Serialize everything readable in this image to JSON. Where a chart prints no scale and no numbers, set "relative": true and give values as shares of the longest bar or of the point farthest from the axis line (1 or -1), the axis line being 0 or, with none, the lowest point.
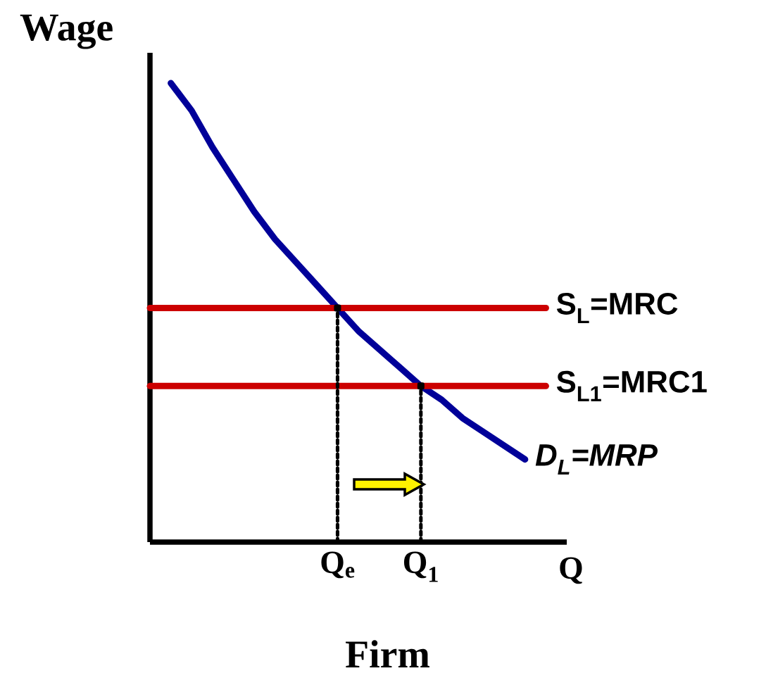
{
  "chart_data": {
    "type": "line",
    "relative": true,
    "ylabel": "Wage",
    "xlabel": "Q",
    "title": "Firm",
    "categories": [
      null,
      null,
      null,
      null,
      null,
      null,
      null,
      null,
      null,
      "Q$_{e}$",
      null,
      null,
      null,
      "Q$_{1}$",
      null,
      null,
      null,
      null,
      null,
      null,
      null
    ],
    "series": [
      {
        "name": "D$_{L}$=MRP",
        "color": "#000099",
        "values": [
          null,
          1.0,
          0.94,
          0.86,
          0.79,
          0.72,
          0.66,
          0.61,
          0.56,
          0.51,
          0.46,
          0.42,
          0.38,
          0.34,
          0.31,
          0.27,
          0.24,
          0.21,
          0.18,
          null,
          null
        ]
      },
      {
        "name": "S$_{L}$=MRC",
        "color": "#cc0000",
        "values": [
          0.51,
          0.51,
          0.51,
          0.51,
          0.51,
          0.51,
          0.51,
          0.51,
          0.51,
          0.51,
          0.51,
          0.51,
          0.51,
          0.51,
          0.51,
          0.51,
          0.51,
          0.51,
          0.51,
          0.51,
          null
        ]
      },
      {
        "name": "S$_{L1}$=MRC1",
        "color": "#cc0000",
        "values": [
          0.34,
          0.34,
          0.34,
          0.34,
          0.34,
          0.34,
          0.34,
          0.34,
          0.34,
          0.34,
          0.34,
          0.34,
          0.34,
          0.34,
          0.34,
          0.34,
          0.34,
          0.34,
          0.34,
          0.34,
          null
        ]
      },
      {
        "type": "lollipop",
        "color": "#000000",
        "line_style": "dotted",
        "values": [
          null,
          null,
          null,
          null,
          null,
          null,
          null,
          null,
          null,
          0.51,
          null,
          null,
          null,
          0.34,
          null,
          null,
          null,
          null,
          null,
          null,
          null
        ]
      }
    ]
  }
}
